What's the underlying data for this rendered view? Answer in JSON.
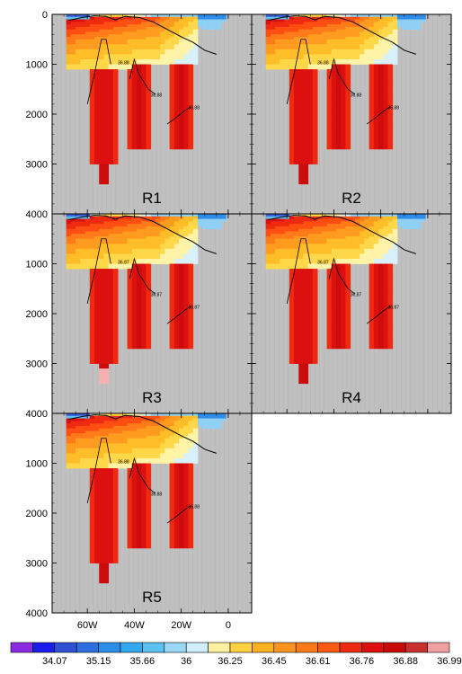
{
  "chart_data": {
    "type": "heatmap",
    "panels": [
      {
        "label": "R1",
        "contour_labels": [
          "36.88",
          "36.88",
          "36.88"
        ],
        "deep_extent": "normal"
      },
      {
        "label": "R2",
        "contour_labels": [
          "36.88",
          "36.88",
          "36.88"
        ],
        "deep_extent": "normal"
      },
      {
        "label": "R3",
        "contour_labels": [
          "36.87",
          "36.87",
          "36.87"
        ],
        "deep_extent": "faded"
      },
      {
        "label": "R4",
        "contour_labels": [
          "36.87",
          "36.87",
          "36.87"
        ],
        "deep_extent": "normal"
      },
      {
        "label": "R5",
        "contour_labels": [
          "36.88",
          "36.88",
          "36.88"
        ],
        "deep_extent": "short"
      }
    ],
    "x_ticks": [
      {
        "value": -60,
        "label": "60W"
      },
      {
        "value": -40,
        "label": "40W"
      },
      {
        "value": -20,
        "label": "20W"
      },
      {
        "value": 0,
        "label": "0"
      }
    ],
    "xlim": [
      -75,
      10
    ],
    "ylim": [
      4000,
      0
    ],
    "y_ticks": [
      0,
      1000,
      2000,
      3000,
      4000
    ],
    "y_tick_labels": [
      "0",
      "1000",
      "2000",
      "3000",
      "4000"
    ],
    "missing_color": "#c0c0c0",
    "colorbar": {
      "colors": [
        "#8a2be2",
        "#1c1ce8",
        "#2f4fd4",
        "#2d6fe0",
        "#2a8de8",
        "#32a8ee",
        "#5cc0f0",
        "#9ad8f5",
        "#cdeefa",
        "#fff0a0",
        "#ffd040",
        "#ffb020",
        "#ff9420",
        "#ff7a18",
        "#ff5a10",
        "#ee2a10",
        "#dd1010",
        "#c80a0a",
        "#c83030",
        "#f0a0a0"
      ],
      "labels": [
        "34.07",
        "35.15",
        "35.66",
        "36",
        "36.25",
        "36.45",
        "36.61",
        "36.76",
        "36.88",
        "36.99"
      ]
    },
    "legend_placement": "bottom"
  }
}
